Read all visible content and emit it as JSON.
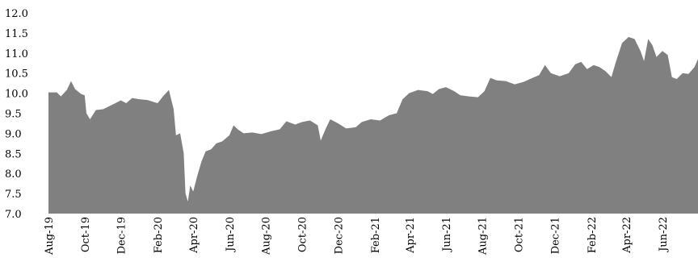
{
  "chart_data": {
    "type": "area",
    "title": "",
    "xlabel": "",
    "ylabel": "",
    "ylim": [
      7.0,
      12.0
    ],
    "yticks": [
      "7.0",
      "7.5",
      "8.0",
      "8.5",
      "9.0",
      "9.5",
      "10.0",
      "10.5",
      "11.0",
      "11.5",
      "12.0"
    ],
    "x_tick_labels": [
      "Aug-19",
      "Oct-19",
      "Dec-19",
      "Feb-20",
      "Apr-20",
      "Jun-20",
      "Aug-20",
      "Oct-20",
      "Dec-20",
      "Feb-21",
      "Apr-21",
      "Jun-21",
      "Aug-21",
      "Oct-21",
      "Dec-21",
      "Feb-22",
      "Apr-22",
      "Jun-22"
    ],
    "x_range": [
      "2019-08-01",
      "2022-07-31"
    ],
    "grid": false,
    "legend": "none",
    "fill_color": "#808080",
    "series": [
      {
        "points": [
          [
            "2019-08-01",
            10.02
          ],
          [
            "2019-08-15",
            10.02
          ],
          [
            "2019-08-22",
            9.92
          ],
          [
            "2019-09-01",
            10.08
          ],
          [
            "2019-09-08",
            10.3
          ],
          [
            "2019-09-15",
            10.1
          ],
          [
            "2019-09-25",
            9.98
          ],
          [
            "2019-10-01",
            9.95
          ],
          [
            "2019-10-04",
            9.5
          ],
          [
            "2019-10-10",
            9.35
          ],
          [
            "2019-10-20",
            9.58
          ],
          [
            "2019-11-01",
            9.6
          ],
          [
            "2019-11-15",
            9.7
          ],
          [
            "2019-12-01",
            9.82
          ],
          [
            "2019-12-10",
            9.75
          ],
          [
            "2019-12-20",
            9.88
          ],
          [
            "2020-01-01",
            9.85
          ],
          [
            "2020-01-15",
            9.83
          ],
          [
            "2020-02-01",
            9.75
          ],
          [
            "2020-02-10",
            9.92
          ],
          [
            "2020-02-20",
            10.08
          ],
          [
            "2020-02-28",
            9.6
          ],
          [
            "2020-03-03",
            8.95
          ],
          [
            "2020-03-10",
            9.0
          ],
          [
            "2020-03-16",
            8.5
          ],
          [
            "2020-03-19",
            7.5
          ],
          [
            "2020-03-23",
            7.3
          ],
          [
            "2020-03-27",
            7.7
          ],
          [
            "2020-04-01",
            7.55
          ],
          [
            "2020-04-08",
            7.95
          ],
          [
            "2020-04-15",
            8.3
          ],
          [
            "2020-04-22",
            8.55
          ],
          [
            "2020-05-01",
            8.6
          ],
          [
            "2020-05-10",
            8.75
          ],
          [
            "2020-05-20",
            8.8
          ],
          [
            "2020-06-01",
            8.95
          ],
          [
            "2020-06-08",
            9.2
          ],
          [
            "2020-06-15",
            9.1
          ],
          [
            "2020-06-25",
            9.0
          ],
          [
            "2020-07-10",
            9.02
          ],
          [
            "2020-07-25",
            8.98
          ],
          [
            "2020-08-10",
            9.05
          ],
          [
            "2020-08-25",
            9.1
          ],
          [
            "2020-09-05",
            9.3
          ],
          [
            "2020-09-20",
            9.22
          ],
          [
            "2020-10-01",
            9.28
          ],
          [
            "2020-10-15",
            9.32
          ],
          [
            "2020-10-28",
            9.2
          ],
          [
            "2020-11-02",
            8.82
          ],
          [
            "2020-11-10",
            9.1
          ],
          [
            "2020-11-18",
            9.35
          ],
          [
            "2020-12-01",
            9.25
          ],
          [
            "2020-12-15",
            9.12
          ],
          [
            "2020-12-31",
            9.15
          ],
          [
            "2021-01-10",
            9.28
          ],
          [
            "2021-01-25",
            9.35
          ],
          [
            "2021-02-10",
            9.32
          ],
          [
            "2021-02-25",
            9.45
          ],
          [
            "2021-03-10",
            9.5
          ],
          [
            "2021-03-20",
            9.85
          ],
          [
            "2021-03-31",
            10.0
          ],
          [
            "2021-04-15",
            10.08
          ],
          [
            "2021-05-01",
            10.05
          ],
          [
            "2021-05-10",
            9.98
          ],
          [
            "2021-05-20",
            10.1
          ],
          [
            "2021-06-01",
            10.15
          ],
          [
            "2021-06-15",
            10.05
          ],
          [
            "2021-06-25",
            9.95
          ],
          [
            "2021-07-10",
            9.92
          ],
          [
            "2021-07-25",
            9.9
          ],
          [
            "2021-08-05",
            10.05
          ],
          [
            "2021-08-15",
            10.38
          ],
          [
            "2021-08-25",
            10.32
          ],
          [
            "2021-09-10",
            10.3
          ],
          [
            "2021-09-25",
            10.22
          ],
          [
            "2021-10-10",
            10.28
          ],
          [
            "2021-10-25",
            10.38
          ],
          [
            "2021-11-05",
            10.45
          ],
          [
            "2021-11-15",
            10.7
          ],
          [
            "2021-11-25",
            10.5
          ],
          [
            "2021-12-10",
            10.42
          ],
          [
            "2021-12-25",
            10.5
          ],
          [
            "2022-01-05",
            10.72
          ],
          [
            "2022-01-15",
            10.78
          ],
          [
            "2022-01-25",
            10.6
          ],
          [
            "2022-02-05",
            10.7
          ],
          [
            "2022-02-15",
            10.65
          ],
          [
            "2022-02-25",
            10.55
          ],
          [
            "2022-03-07",
            10.4
          ],
          [
            "2022-03-15",
            10.8
          ],
          [
            "2022-03-25",
            11.25
          ],
          [
            "2022-04-05",
            11.4
          ],
          [
            "2022-04-15",
            11.35
          ],
          [
            "2022-04-25",
            11.05
          ],
          [
            "2022-05-01",
            10.8
          ],
          [
            "2022-05-08",
            11.35
          ],
          [
            "2022-05-15",
            11.2
          ],
          [
            "2022-05-22",
            10.9
          ],
          [
            "2022-06-01",
            11.05
          ],
          [
            "2022-06-10",
            10.95
          ],
          [
            "2022-06-17",
            10.4
          ],
          [
            "2022-06-25",
            10.35
          ],
          [
            "2022-07-05",
            10.5
          ],
          [
            "2022-07-15",
            10.48
          ],
          [
            "2022-07-25",
            10.65
          ],
          [
            "2022-07-31",
            10.85
          ]
        ]
      }
    ]
  }
}
